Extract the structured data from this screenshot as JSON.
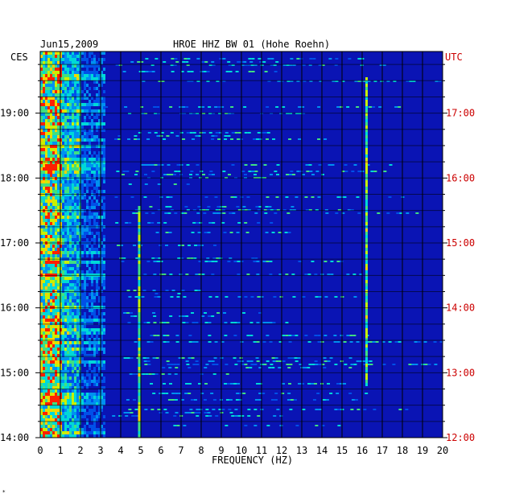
{
  "header": {
    "date": "Jun15,2009",
    "station": "HROE HHZ BW 01 (Hohe Roehn)",
    "left_tz": "CES",
    "right_tz": "UTC"
  },
  "footer_mark": "*",
  "colors": {
    "background": "#0a14b4",
    "grid": "#000000",
    "left_labels": "#000000",
    "right_labels": "#cc0000",
    "spectrum_low": "#0000c8",
    "spectrum_mid": "#00dcdc",
    "spectrum_high": "#ffff00",
    "spectrum_peak": "#ff0000"
  },
  "chart_data": {
    "type": "heatmap",
    "title": "HROE HHZ BW 01 (Hohe Roehn)",
    "xlabel": "FREQUENCY (HZ)",
    "xlim": [
      0,
      20
    ],
    "x_ticks": [
      "0",
      "1",
      "2",
      "3",
      "4",
      "5",
      "6",
      "7",
      "8",
      "9",
      "10",
      "11",
      "12",
      "13",
      "14",
      "15",
      "16",
      "17",
      "18",
      "19",
      "20"
    ],
    "y_left_ticks": [
      "19:00",
      "18:00",
      "17:00",
      "16:00",
      "15:00",
      "14:00"
    ],
    "y_right_ticks": [
      "17:00",
      "16:00",
      "15:00",
      "14:00",
      "13:00",
      "12:00"
    ],
    "ylim_hours_utc": [
      12.0,
      17.95
    ],
    "grid": true,
    "features": [
      {
        "name": "low-frequency energy",
        "freq_range_hz": [
          0,
          3
        ],
        "intensity": "high"
      },
      {
        "name": "spectral line",
        "freq_hz": 4.9,
        "time_range_utc_h": [
          12.0,
          15.6
        ],
        "intensity": "medium"
      },
      {
        "name": "spectral line",
        "freq_hz": 16.2,
        "time_range_utc_h": [
          12.8,
          17.6
        ],
        "intensity": "medium"
      }
    ]
  }
}
